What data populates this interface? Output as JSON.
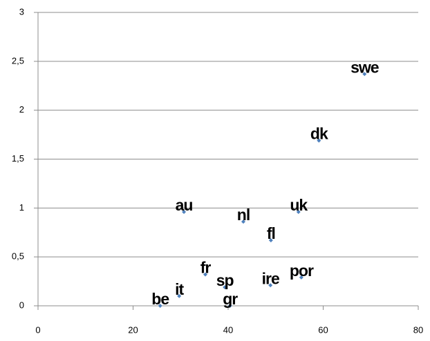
{
  "chart_data": {
    "type": "scatter",
    "x": [
      68.7,
      59.1,
      30.7,
      43.2,
      54.8,
      49.0,
      35.2,
      39.3,
      48.9,
      55.4,
      40.4,
      25.7,
      29.7
    ],
    "values": [
      2.37,
      1.69,
      0.96,
      0.86,
      0.96,
      0.67,
      0.32,
      0.19,
      0.21,
      0.29,
      0,
      0,
      0.1
    ],
    "point_labels": [
      "swe",
      "dk",
      "au",
      "nl",
      "uk",
      "fl",
      "fr",
      "sp",
      "ire",
      "por",
      "gr",
      "be",
      "it"
    ],
    "color": "#4f81bd",
    "xlim": [
      0,
      80
    ],
    "xticks": [
      0,
      20,
      40,
      60,
      80
    ],
    "ylim": [
      0,
      3
    ],
    "yticks": [
      0,
      {
        "value": 0.5,
        "label": "0,5"
      },
      1,
      {
        "value": 1.5,
        "label": "1,5"
      },
      2,
      {
        "value": 2.5,
        "label": "2,5"
      },
      3
    ],
    "grid": true
  }
}
